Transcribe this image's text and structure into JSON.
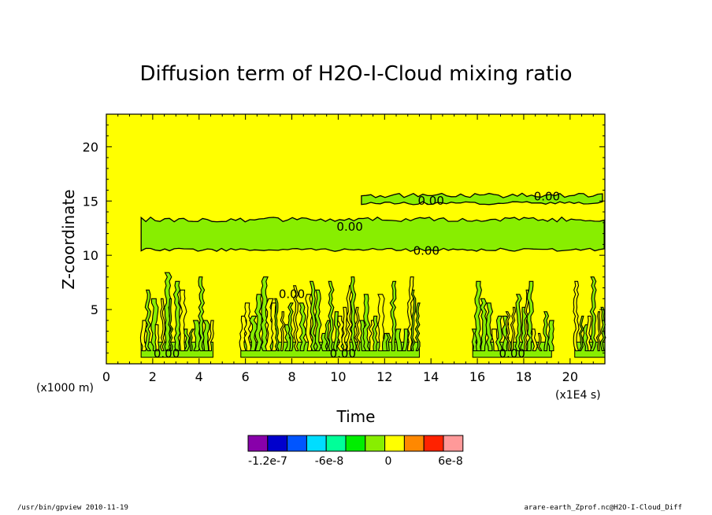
{
  "chart_data": {
    "type": "heatmap",
    "title": "Diffusion term of H2O-I-Cloud mixing ratio",
    "xlabel": "Time",
    "ylabel": "Z-coordinate",
    "x_unit": "(x1E4 s)",
    "y_unit": "(x1000 m)",
    "xlim": [
      0,
      21.5
    ],
    "ylim": [
      0,
      23
    ],
    "xticks": [
      0,
      2,
      4,
      6,
      8,
      10,
      12,
      14,
      16,
      18,
      20
    ],
    "yticks": [
      5,
      10,
      15,
      20
    ],
    "background_value_color": "#ffff00",
    "contour_labels": [
      "0.00",
      "0.00",
      "0.00",
      "0.00",
      "0.00",
      "0.00",
      "0.00",
      "0.00"
    ],
    "colorbar": {
      "colors": [
        "#8800aa",
        "#0000cc",
        "#0055ff",
        "#00ddff",
        "#00ff99",
        "#00ee00",
        "#88ee00",
        "#ffff00",
        "#ff8800",
        "#ff2200",
        "#ff9999"
      ],
      "tick_labels": [
        "-1.2e-7",
        "-6e-8",
        "0",
        "6e-8"
      ]
    },
    "bands": [
      {
        "z_bottom": 10.5,
        "z_top": 13.3,
        "x_start": 1.5,
        "x_end": 21.5,
        "color": "#88ee00"
      },
      {
        "z_bottom": 14.8,
        "z_top": 15.5,
        "x_start": 11.0,
        "x_end": 21.5,
        "color": "#88ee00"
      }
    ],
    "convective_bursts": [
      {
        "x_start": 1.5,
        "x_end": 4.6
      },
      {
        "x_start": 5.8,
        "x_end": 13.5
      },
      {
        "x_start": 15.8,
        "x_end": 19.2
      },
      {
        "x_start": 20.2,
        "x_end": 21.5
      }
    ]
  },
  "footer": {
    "left": "/usr/bin/gpview   2010-11-19",
    "right": "arare-earth_Zprof.nc@H2O-I-Cloud_Diff"
  }
}
